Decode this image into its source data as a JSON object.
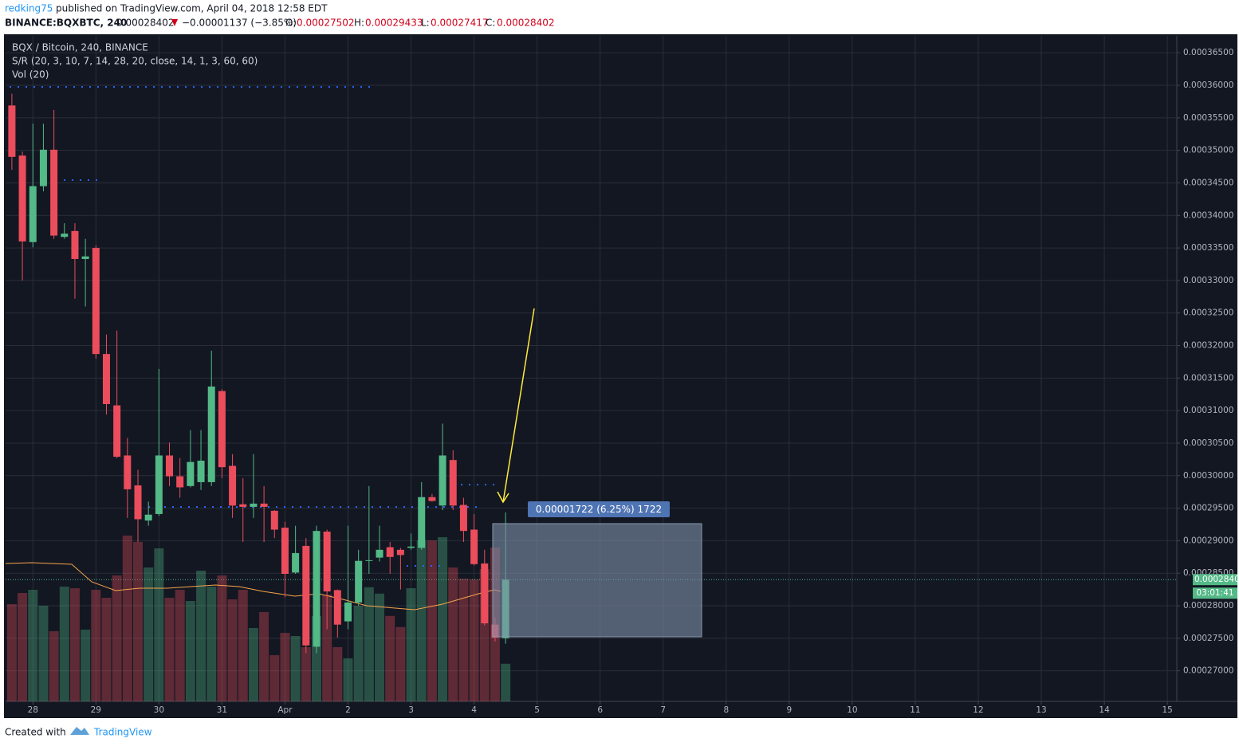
{
  "header": {
    "user": "redking75",
    "published": "published on TradingView.com, April 04, 2018 12:58 EDT",
    "symbol": "BINANCE:BQXBTC, 240",
    "change": "−0.00001137 (−3.85%)",
    "fields": [
      "O:",
      "H:",
      "L:",
      "C:"
    ]
  },
  "chart_data": {
    "type": "candlestick",
    "title": "BQX / Bitcoin, 240, BINANCE",
    "indicators": [
      "S/R (20, 3, 10, 7, 14, 28, 20, close, 14, 1, 3, 60, 60)",
      "Vol (20)"
    ],
    "open": [
      0.0003569,
      0.0003492,
      0.0003359,
      0.0003445,
      0.0003501,
      0.0003367,
      0.0003376,
      0.0003333,
      0.000335,
      0.0003187,
      0.0003108,
      0.0003031,
      0.0002985,
      0.0002931,
      0.0002941,
      0.0003031,
      0.0002999,
      0.0002984,
      0.000299,
      0.000299,
      0.000313,
      0.0003015,
      0.0002956,
      0.0002952,
      0.0002957,
      0.0002946,
      0.000292,
      0.0002851,
      0.0002892,
      0.0002737,
      0.0002914,
      0.0002824,
      0.0002776,
      0.0002805,
      0.0002869,
      0.0002874,
      0.000289,
      0.0002886,
      0.0002889,
      0.0002889,
      0.0002967,
      0.0002954,
      0.0003024,
      0.0002955,
      0.0002917,
      0.0002865,
      0.0002771,
      0.00027502
    ],
    "high": [
      0.0003587,
      0.0003498,
      0.0003541,
      0.0003541,
      0.0003562,
      0.0003388,
      0.0003388,
      0.0003364,
      0.0003354,
      0.0003217,
      0.0003223,
      0.0003058,
      0.0003009,
      0.000296,
      0.0003164,
      0.0003051,
      0.0003027,
      0.000307,
      0.000307,
      0.0003192,
      0.0003133,
      0.0003033,
      0.0002996,
      0.0003033,
      0.0002984,
      0.0002947,
      0.0002929,
      0.0002923,
      0.0002904,
      0.0002923,
      0.0002917,
      0.0002825,
      0.0002923,
      0.0002886,
      0.0002984,
      0.0002923,
      0.0002898,
      0.0002889,
      0.0002911,
      0.000299,
      0.0002972,
      0.000308,
      0.0003039,
      0.0002966,
      0.0002941,
      0.0002886,
      0.0002782,
      0.00029433
    ],
    "low": [
      0.000347,
      0.00033,
      0.0003351,
      0.0003437,
      0.0003364,
      0.0003364,
      0.0003272,
      0.000326,
      0.000318,
      0.0003094,
      0.0003027,
      0.0002935,
      0.0002898,
      0.0002923,
      0.0002938,
      0.0002984,
      0.0002966,
      0.0002982,
      0.0002978,
      0.0002984,
      0.0002996,
      0.0002935,
      0.0002898,
      0.0002935,
      0.0002898,
      0.0002904,
      0.0002813,
      0.0002849,
      0.0002727,
      0.0002727,
      0.0002764,
      0.0002751,
      0.0002764,
      0.00028,
      0.0002849,
      0.0002868,
      0.0002849,
      0.0002825,
      0.0002886,
      0.0002886,
      0.000296,
      0.0002947,
      0.0002947,
      0.0002898,
      0.0002862,
      0.000277,
      0.0002745,
      0.00027417
    ],
    "close": [
      0.000349,
      0.000336,
      0.0003445,
      0.0003501,
      0.0003369,
      0.0003372,
      0.0003333,
      0.0003337,
      0.0003187,
      0.000311,
      0.0003029,
      0.0002979,
      0.0002933,
      0.000294,
      0.0003031,
      0.0002999,
      0.0002982,
      0.0003021,
      0.0003023,
      0.0003137,
      0.0003013,
      0.0002954,
      0.0002952,
      0.0002957,
      0.0002952,
      0.0002917,
      0.0002849,
      0.0002881,
      0.0002739,
      0.0002915,
      0.0002822,
      0.0002771,
      0.0002805,
      0.0002869,
      0.000287,
      0.0002886,
      0.0002875,
      0.0002878,
      0.0002891,
      0.0002967,
      0.0002961,
      0.0003031,
      0.0002954,
      0.0002915,
      0.0002864,
      0.0002773,
      0.0002751,
      0.00028402
    ],
    "volume": [
      30.5,
      34,
      35,
      30,
      22,
      36,
      35.5,
      22.5,
      35,
      32.5,
      39.5,
      52,
      50,
      42,
      48,
      32.5,
      35,
      31.5,
      41,
      36,
      39.5,
      32,
      35,
      23,
      28,
      14.5,
      21.5,
      20.5,
      17,
      26.8,
      33.5,
      17,
      13.5,
      30,
      35.8,
      33.8,
      26.8,
      23.3,
      35.5,
      50.5,
      50.5,
      51.5,
      42,
      38.5,
      38.3,
      41.5,
      48.3,
      11.8
    ],
    "up_color": "#53b987",
    "down_color": "#eb4d5c",
    "xlim": [
      -0.6,
      110.9
    ],
    "xticks": [
      {
        "value": 2,
        "label": "28"
      },
      {
        "value": 8,
        "label": "29"
      },
      {
        "value": 14,
        "label": "30"
      },
      {
        "value": 20,
        "label": "31"
      },
      {
        "value": 26,
        "label": "Apr"
      },
      {
        "value": 32,
        "label": "2"
      },
      {
        "value": 38,
        "label": "3"
      },
      {
        "value": 44,
        "label": "4"
      },
      {
        "value": 50,
        "label": "5"
      },
      {
        "value": 56,
        "label": "6"
      },
      {
        "value": 62,
        "label": "7"
      },
      {
        "value": 68,
        "label": "8"
      },
      {
        "value": 74,
        "label": "9"
      },
      {
        "value": 80,
        "label": "10"
      },
      {
        "value": 86,
        "label": "11"
      },
      {
        "value": 92,
        "label": "12"
      },
      {
        "value": 98,
        "label": "13"
      },
      {
        "value": 104,
        "label": "14"
      },
      {
        "value": 110,
        "label": "15"
      }
    ],
    "ylim": [
      0.0002653,
      0.0003676
    ],
    "yticks": [
      {
        "value": 0.00027,
        "label": "0.00027000"
      },
      {
        "value": 0.000275,
        "label": "0.00027500"
      },
      {
        "value": 0.00028,
        "label": "0.00028000"
      },
      {
        "value": 0.000285,
        "label": "0.00028500"
      },
      {
        "value": 0.00029,
        "label": "0.00029000"
      },
      {
        "value": 0.000295,
        "label": "0.00029500"
      },
      {
        "value": 0.0003,
        "label": "0.00030000"
      },
      {
        "value": 0.000305,
        "label": "0.00030500"
      },
      {
        "value": 0.00031,
        "label": "0.00031000"
      },
      {
        "value": 0.000315,
        "label": "0.00031500"
      },
      {
        "value": 0.00032,
        "label": "0.00032000"
      },
      {
        "value": 0.000325,
        "label": "0.00032500"
      },
      {
        "value": 0.00033,
        "label": "0.00033000"
      },
      {
        "value": 0.000335,
        "label": "0.00033500"
      },
      {
        "value": 0.00034,
        "label": "0.00034000"
      },
      {
        "value": 0.000345,
        "label": "0.00034500"
      },
      {
        "value": 0.00035,
        "label": "0.00035000"
      },
      {
        "value": 0.000355,
        "label": "0.00035500"
      },
      {
        "value": 0.00036,
        "label": "0.00036000"
      },
      {
        "value": 0.000365,
        "label": "0.00036500"
      }
    ],
    "y2lim": [
      0,
      100
    ],
    "grid": true,
    "measure_label": "0.00001722 (6.25%) 1722",
    "countdown": "03:01:41"
  },
  "footer": {
    "created": "Created with",
    "brand": "TradingView"
  }
}
